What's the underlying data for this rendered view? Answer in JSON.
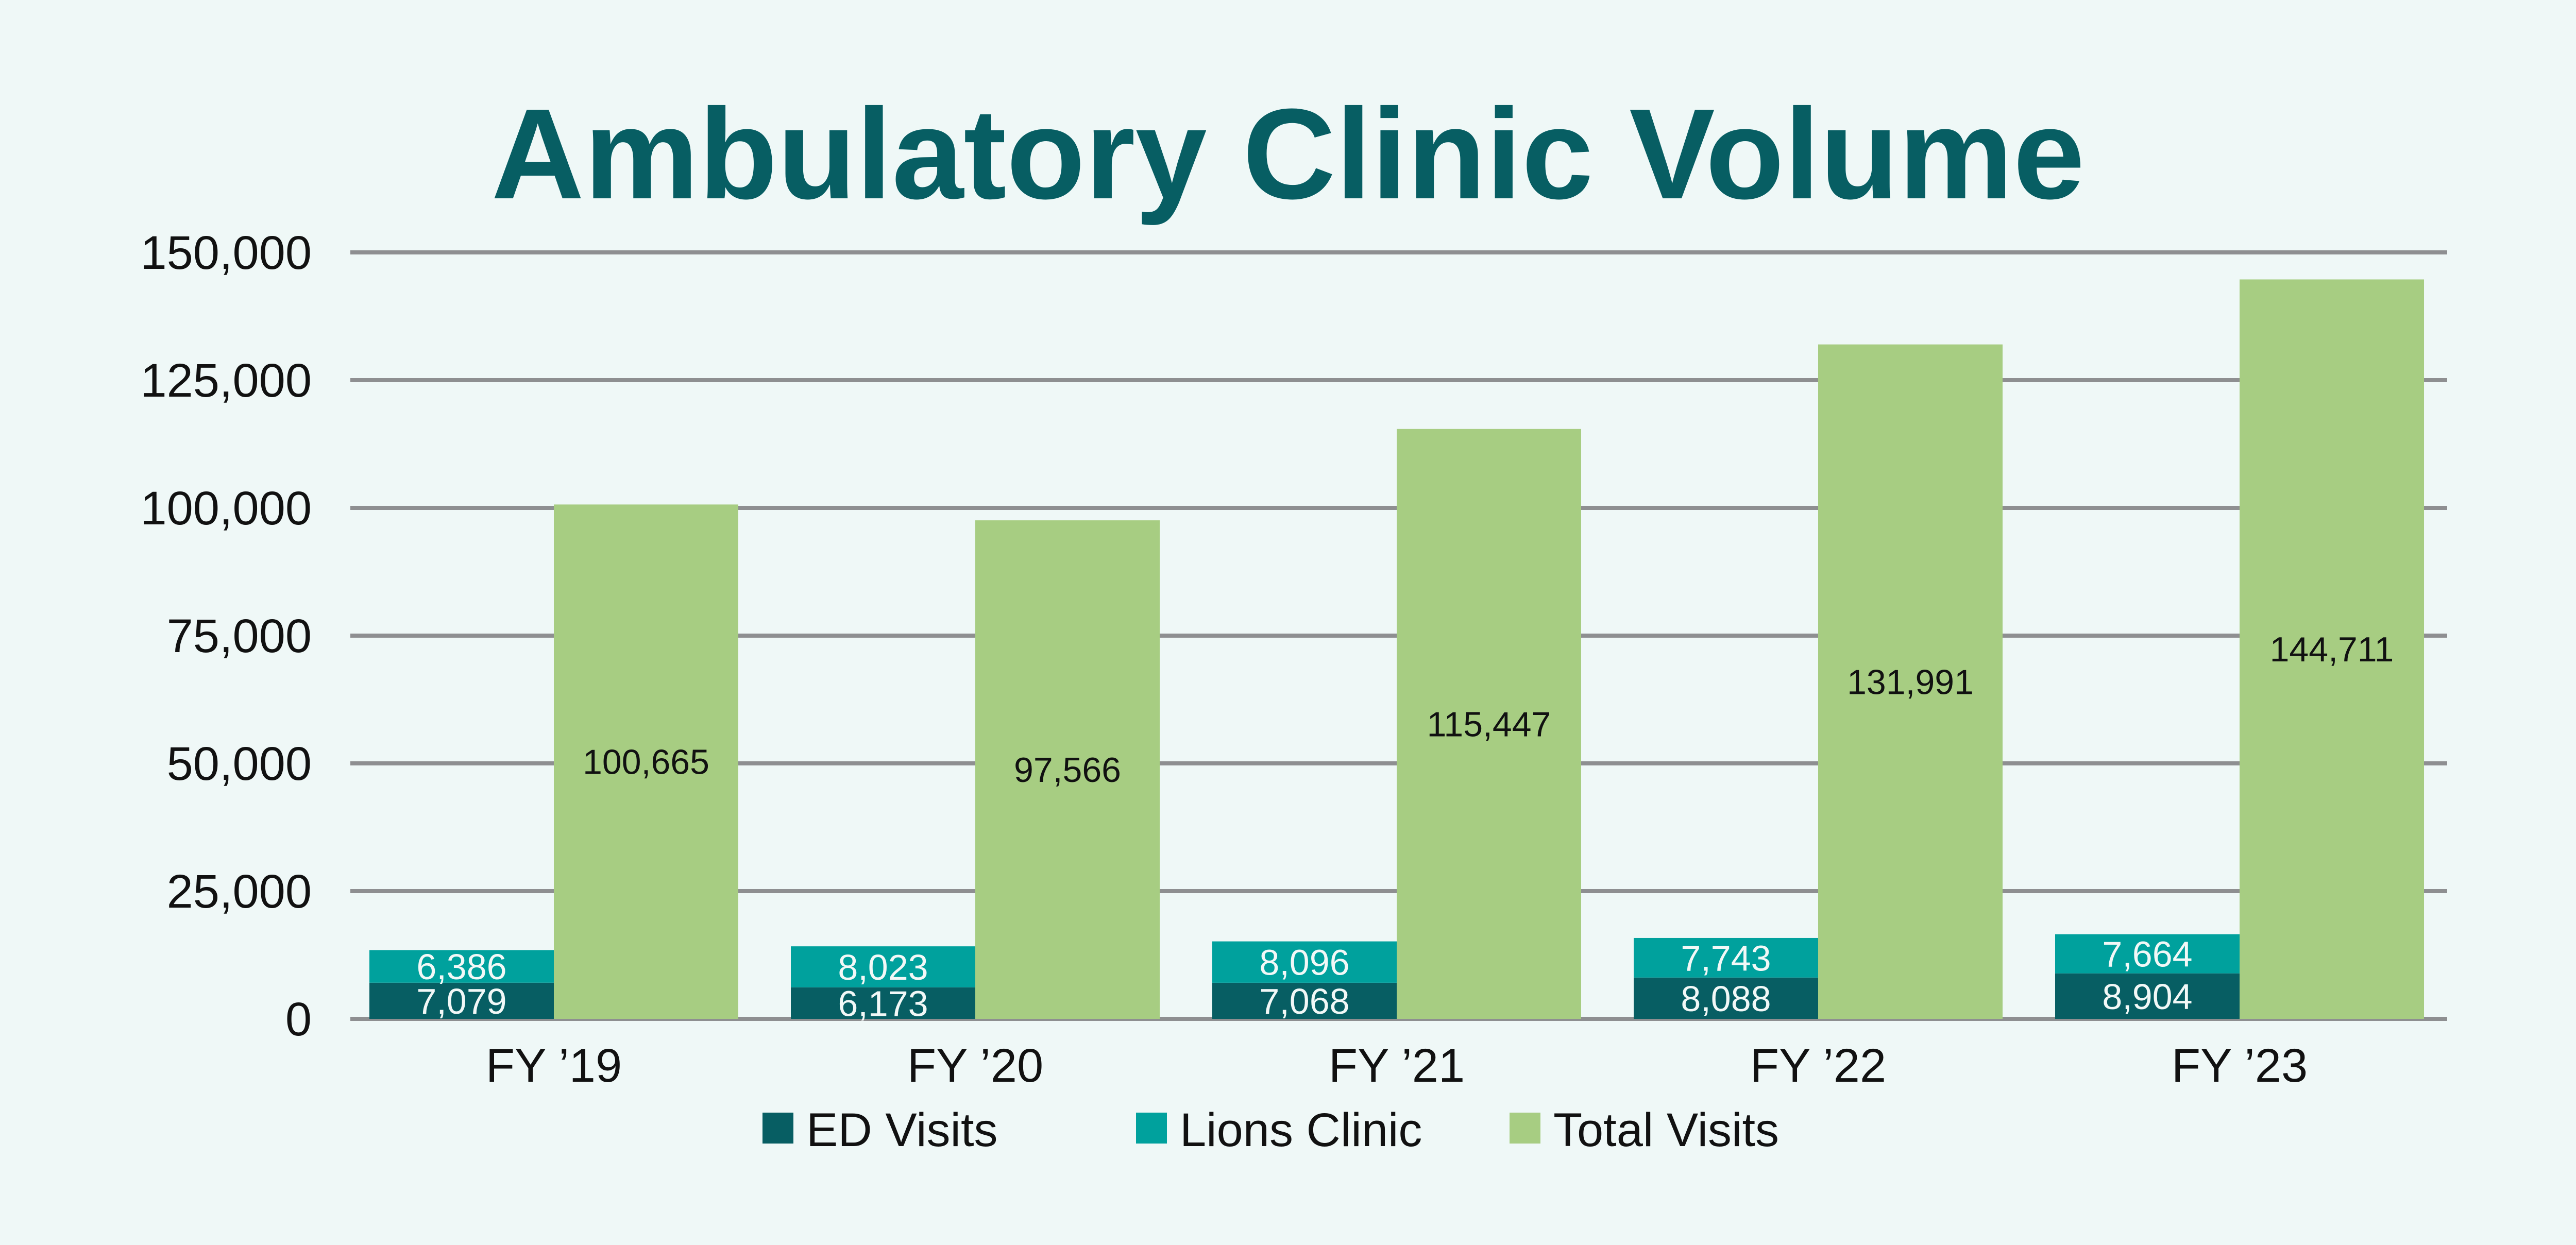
{
  "chart_data": {
    "type": "bar",
    "title": "Ambulatory Clinic Volume",
    "xlabel": "",
    "ylabel": "",
    "categories": [
      "FY ’19",
      "FY ’20",
      "FY ’21",
      "FY ’22",
      "FY ’23"
    ],
    "series": [
      {
        "name": "ED Visits",
        "color": "#075E63",
        "stack": "a",
        "values": [
          7079,
          6173,
          7068,
          8088,
          8904
        ],
        "labels": [
          "7,079",
          "6,173",
          "7,068",
          "8,088",
          "8,904"
        ]
      },
      {
        "name": "Lions Clinic",
        "color": "#00A19D",
        "stack": "a",
        "values": [
          6386,
          8023,
          8096,
          7743,
          7664
        ],
        "labels": [
          "6,386",
          "8,023",
          "8,096",
          "7,743",
          "7,664"
        ]
      },
      {
        "name": "Total Visits",
        "color": "#A7CD82",
        "stack": "b",
        "values": [
          100665,
          97566,
          115447,
          131991,
          144711
        ],
        "labels": [
          "100,665",
          "97,566",
          "115,447",
          "131,991",
          "144,711"
        ]
      }
    ],
    "ylim": [
      0,
      150000
    ],
    "yticks": [
      0,
      25000,
      50000,
      75000,
      100000,
      125000,
      150000
    ],
    "ytick_labels": [
      "0",
      "25,000",
      "50,000",
      "75,000",
      "100,000",
      "125,000",
      "150,000"
    ],
    "grid": true,
    "legend_position": "bottom-center"
  },
  "colors": {
    "background": "#EFF8F7",
    "title": "#075E63",
    "grid": "#8E8F91"
  }
}
